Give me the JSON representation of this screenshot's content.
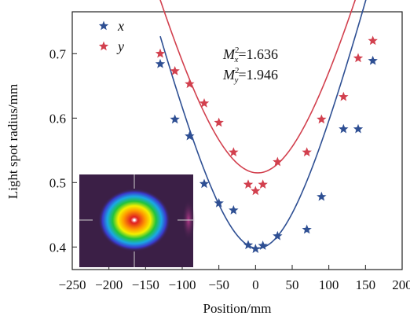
{
  "chart_data": {
    "type": "scatter",
    "xlabel": "Position/mm",
    "ylabel": "Light spot radius/mm",
    "xlim": [
      -250,
      200
    ],
    "ylim": [
      0.365,
      0.765
    ],
    "xticks": [
      -250,
      -200,
      -150,
      -100,
      -50,
      0,
      50,
      100,
      150,
      200
    ],
    "xtick_labels": [
      "−250",
      "−200",
      "−150",
      "−100",
      "−50",
      "0",
      "50",
      "100",
      "150",
      "200"
    ],
    "yticks": [
      0.4,
      0.5,
      0.6,
      0.7
    ],
    "ytick_labels": [
      "0.4",
      "0.5",
      "0.6",
      "0.7"
    ],
    "grid": false,
    "legend_position": "top-left",
    "series": [
      {
        "name": "x",
        "color": "#2e4f93",
        "marker": "star",
        "points": [
          [
            -130,
            0.684
          ],
          [
            -110,
            0.598
          ],
          [
            -90,
            0.572
          ],
          [
            -70,
            0.498
          ],
          [
            -50,
            0.468
          ],
          [
            -30,
            0.457
          ],
          [
            -10,
            0.403
          ],
          [
            0,
            0.397
          ],
          [
            10,
            0.402
          ],
          [
            30,
            0.417
          ],
          [
            70,
            0.427
          ],
          [
            90,
            0.478
          ],
          [
            120,
            0.583
          ],
          [
            140,
            0.583
          ],
          [
            160,
            0.689
          ]
        ],
        "fit": {
          "w0": 0.398,
          "z0": 3,
          "zR": 87
        }
      },
      {
        "name": "y",
        "color": "#d2404e",
        "marker": "star",
        "points": [
          [
            -130,
            0.7
          ],
          [
            -110,
            0.673
          ],
          [
            -90,
            0.653
          ],
          [
            -70,
            0.623
          ],
          [
            -50,
            0.593
          ],
          [
            -30,
            0.547
          ],
          [
            -10,
            0.497
          ],
          [
            0,
            0.487
          ],
          [
            10,
            0.497
          ],
          [
            30,
            0.532
          ],
          [
            70,
            0.547
          ],
          [
            90,
            0.598
          ],
          [
            120,
            0.633
          ],
          [
            140,
            0.693
          ],
          [
            160,
            0.72
          ]
        ],
        "fit": {
          "w0": 0.515,
          "z0": 3,
          "zR": 116
        }
      }
    ],
    "annotations": {
      "m2x_value": "=1.636",
      "m2y_value": "=1.946"
    },
    "inset": {
      "description_color_map": "rainbow",
      "background": "#3b1f46"
    }
  }
}
